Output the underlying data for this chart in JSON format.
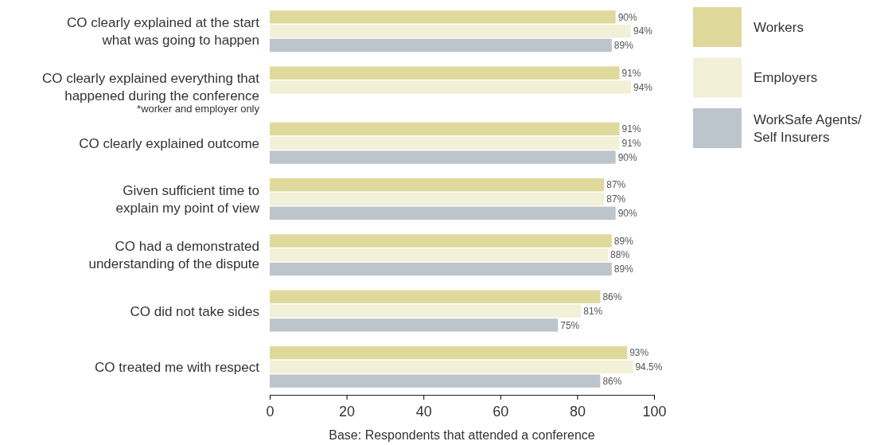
{
  "chart_data": {
    "type": "bar",
    "orientation": "horizontal",
    "xlabel": "Base: Respondents that attended a conference",
    "categories": [
      "CO clearly explained at the start\nwhat was going to happen",
      "CO clearly explained everything that\nhappened during the conference",
      "CO clearly explained outcome",
      "Given sufficient time to\nexplain my point of view",
      "CO had a demonstrated\nunderstanding of the dispute",
      "CO did not take sides",
      "CO treated me with respect"
    ],
    "series": [
      {
        "name": "Workers",
        "color": "#e0d99c",
        "values": [
          90,
          91,
          91,
          87,
          89,
          86,
          93
        ],
        "value_labels": [
          "90%",
          "91%",
          "91%",
          "87%",
          "89%",
          "86%",
          "93%"
        ]
      },
      {
        "name": "Employers",
        "color": "#f2f0d6",
        "values": [
          94,
          94,
          91,
          87,
          88,
          81,
          94.5
        ],
        "value_labels": [
          "94%",
          "94%",
          "91%",
          "87%",
          "88%",
          "81%",
          "94.5%"
        ]
      },
      {
        "name": "WorkSafe Agents/\nSelf Insurers",
        "color": "#bcc5cc",
        "values": [
          89,
          null,
          90,
          90,
          89,
          75,
          86
        ],
        "value_labels": [
          "89%",
          null,
          "90%",
          "90%",
          "89%",
          "75%",
          "86%"
        ]
      }
    ],
    "annotations": [
      "*worker and employer only"
    ],
    "xlim": [
      0,
      100
    ],
    "xticks": [
      0,
      20,
      40,
      60,
      80,
      100
    ],
    "grid": false,
    "legend": "right"
  }
}
